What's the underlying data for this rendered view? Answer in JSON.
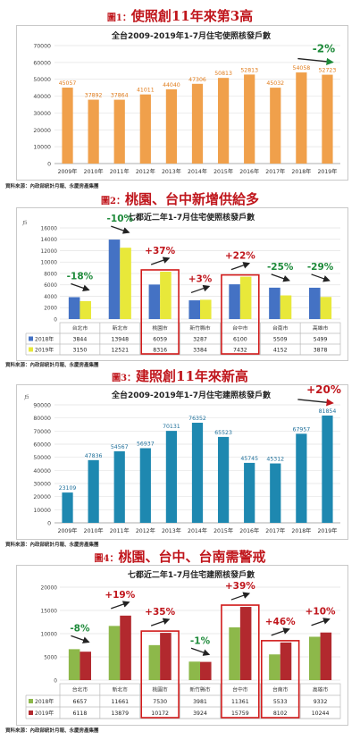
{
  "source_note": "資料來源：內政部統計月報、永慶房產集團",
  "figures": [
    {
      "num": "圖1：",
      "title": "使照創11年來第3高"
    },
    {
      "num": "圖2：",
      "title": "桃園、台中新增供給多"
    },
    {
      "num": "圖3：",
      "title": "建照創11年來新高"
    },
    {
      "num": "圖4：",
      "title": "桃園、台中、台南需警戒"
    }
  ],
  "chart_data": [
    {
      "type": "bar",
      "title": "全台2009-2019年1-7月住宅使照核發戶數",
      "categories": [
        "2009年",
        "2010年",
        "2011年",
        "2012年",
        "2013年",
        "2014年",
        "2015年",
        "2016年",
        "2017年",
        "2018年",
        "2019年"
      ],
      "values": [
        45057,
        37892,
        37864,
        41011,
        44040,
        47306,
        50813,
        52813,
        45032,
        54058,
        52723
      ],
      "ylim": [
        0,
        70000
      ],
      "yticks": [
        0,
        10000,
        20000,
        30000,
        40000,
        50000,
        60000,
        70000
      ],
      "annotations": [
        {
          "text": "-2%",
          "color": "#1e8a3a"
        }
      ],
      "color": "#f0a04b",
      "grid": true
    },
    {
      "type": "bar",
      "title": "七都近二年1-7月住宅使照核發戶數",
      "unit": "戶",
      "categories": [
        "台北市",
        "新北市",
        "桃園市",
        "新竹縣市",
        "台中市",
        "台南市",
        "高雄市"
      ],
      "series": [
        {
          "name": "2018年",
          "values": [
            3844,
            13948,
            6059,
            3287,
            6100,
            5509,
            5499
          ],
          "color": "#4472c4"
        },
        {
          "name": "2019年",
          "values": [
            3150,
            12521,
            8316,
            3384,
            7432,
            4152,
            3878
          ],
          "color": "#e8e83a"
        }
      ],
      "ylim": [
        0,
        16000
      ],
      "yticks": [
        0,
        2000,
        4000,
        6000,
        8000,
        10000,
        12000,
        14000,
        16000
      ],
      "annotations": [
        "-18%",
        "-10%",
        "+37%",
        "+3%",
        "+22%",
        "-25%",
        "-29%"
      ],
      "highlighted": [
        "桃園市",
        "台中市"
      ],
      "grid": true
    },
    {
      "type": "bar",
      "title": "全台2009-2019年1-7月住宅建照核發戶數",
      "unit": "戶",
      "categories": [
        "2009年",
        "2010年",
        "2011年",
        "2012年",
        "2013年",
        "2014年",
        "2015年",
        "2016年",
        "2017年",
        "2018年",
        "2019年"
      ],
      "values": [
        23109,
        47836,
        54567,
        56937,
        70131,
        76352,
        65523,
        45745,
        45312,
        67957,
        81854
      ],
      "ylim": [
        0,
        90000
      ],
      "yticks": [
        0,
        10000,
        20000,
        30000,
        40000,
        50000,
        60000,
        70000,
        80000,
        90000
      ],
      "annotations": [
        {
          "text": "+20%",
          "color": "#c0161c"
        }
      ],
      "color": "#1e88b0",
      "grid": true
    },
    {
      "type": "bar",
      "title": "七都近二年1-7月住宅建照核發戶數",
      "categories": [
        "台北市",
        "新北市",
        "桃園市",
        "新竹縣市",
        "台中市",
        "台南市",
        "高雄市"
      ],
      "series": [
        {
          "name": "2018年",
          "values": [
            6657,
            11661,
            7530,
            3981,
            11361,
            5533,
            9332
          ],
          "color": "#8db84a"
        },
        {
          "name": "2019年",
          "values": [
            6118,
            13879,
            10172,
            3924,
            15759,
            8102,
            10244
          ],
          "color": "#b2292e"
        }
      ],
      "ylim": [
        0,
        20000
      ],
      "yticks": [
        0,
        5000,
        10000,
        15000,
        20000
      ],
      "annotations": [
        "-8%",
        "+19%",
        "+35%",
        "-1%",
        "+39%",
        "+46%",
        "+10%"
      ],
      "highlighted": [
        "桃園市",
        "台中市",
        "台南市"
      ],
      "grid": true
    }
  ]
}
